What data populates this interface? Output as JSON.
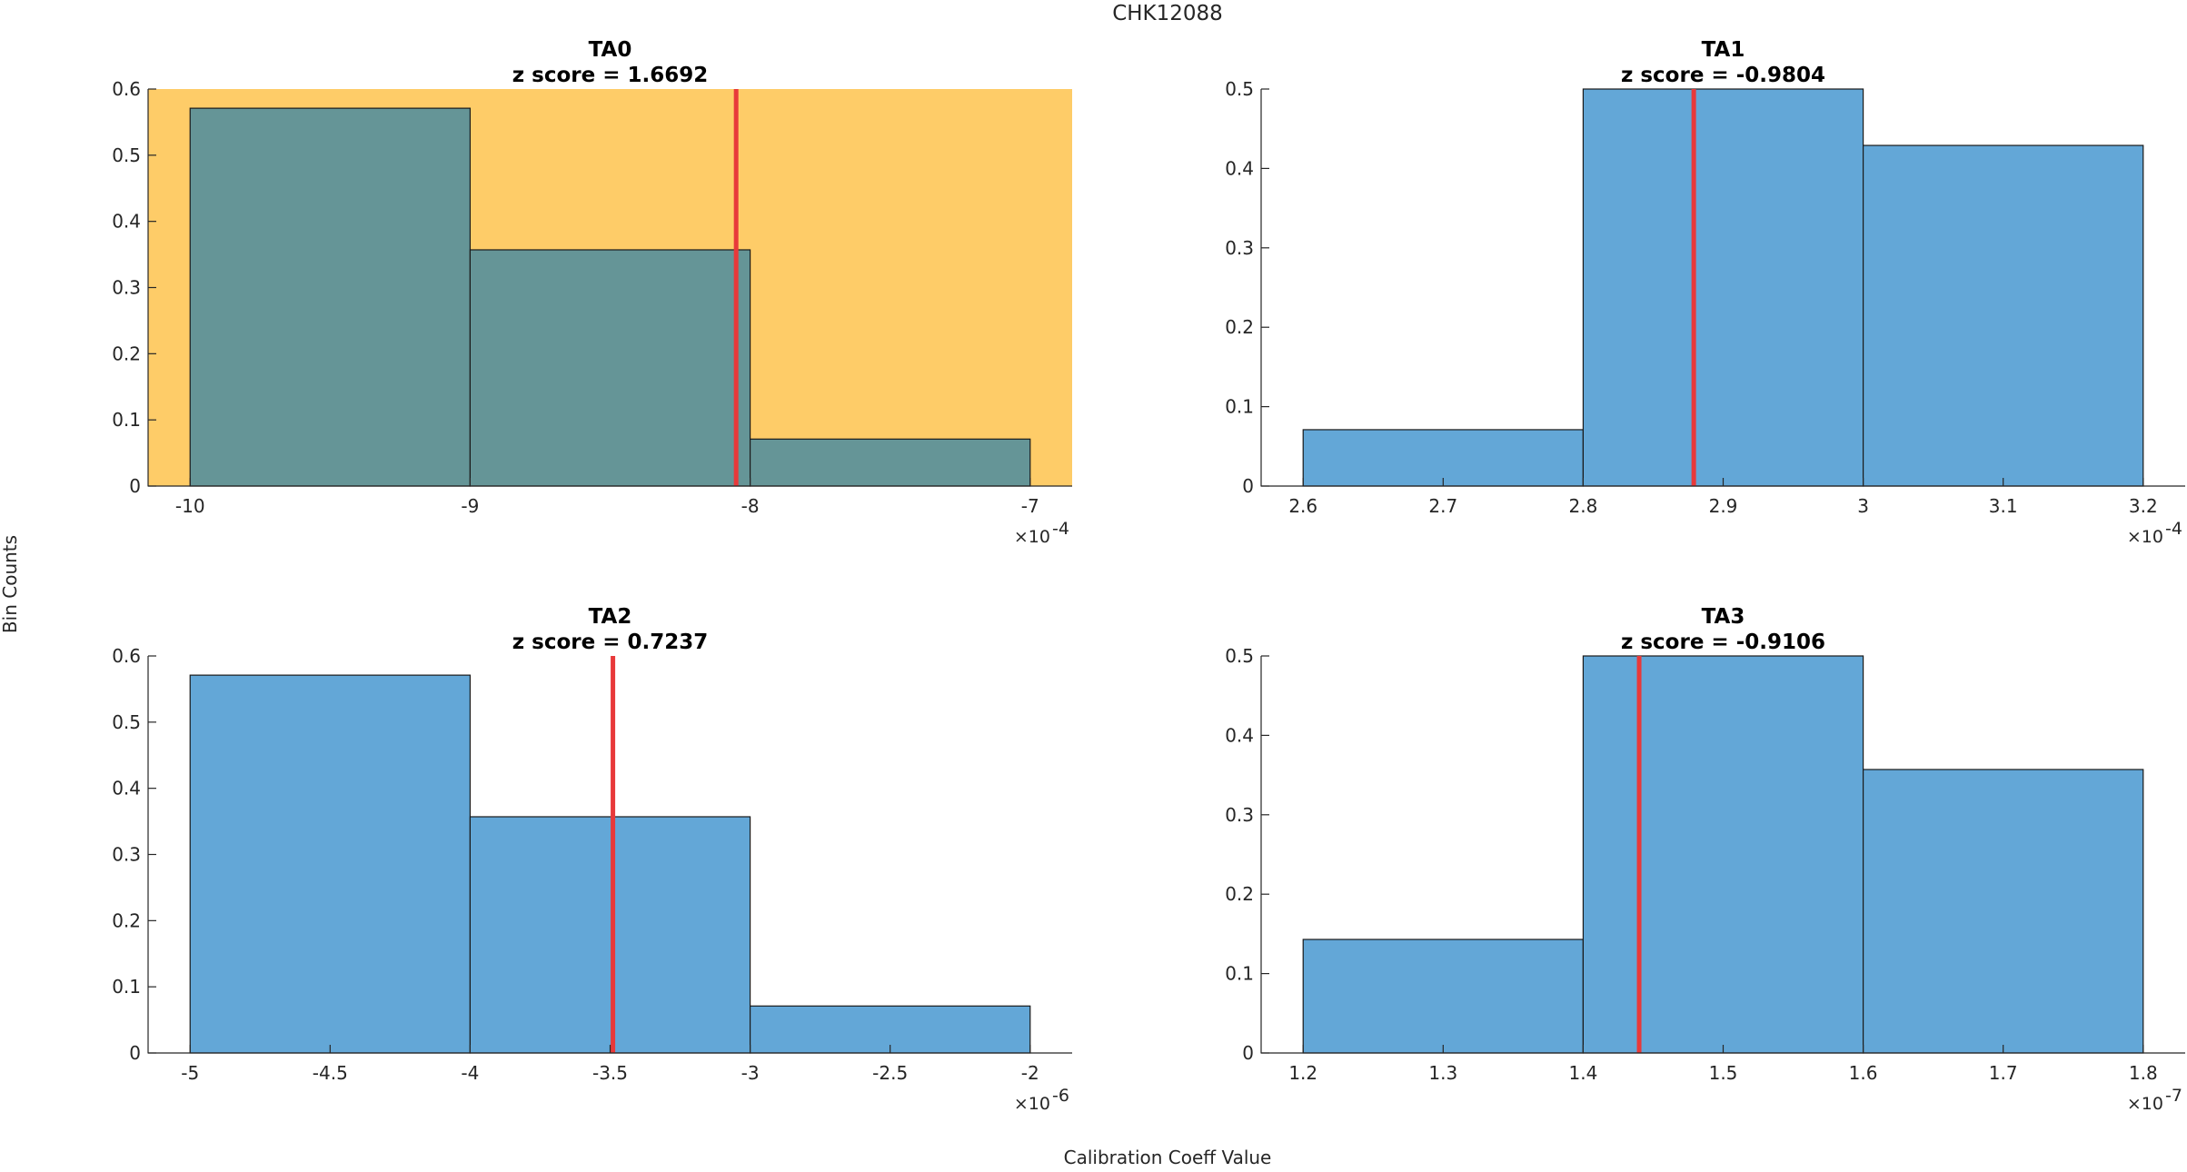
{
  "figure": {
    "title": "CHK12088",
    "xlabel": "Calibration Coeff Value",
    "ylabel": "Bin Counts"
  },
  "colors": {
    "bar_fill": "#63a7d7",
    "bar_fill_flagged": "#659597",
    "highlight_bg": "#fecc68",
    "marker": "#e8393a",
    "bar_edge": "#1a1a1a",
    "axis": "#262626"
  },
  "chart_data": [
    {
      "type": "bar",
      "name": "TA0",
      "title": "TA0",
      "subtitle": "z score = 1.6692",
      "highlighted": true,
      "bin_edges": [
        -10,
        -9,
        -8,
        -7
      ],
      "values": [
        0.571,
        0.357,
        0.071
      ],
      "marker_x": -8.05,
      "xlim": [
        -10.15,
        -6.85
      ],
      "ylim": [
        0,
        0.6
      ],
      "xticks": [
        -10,
        -9,
        -8,
        -7
      ],
      "xtick_labels": [
        "-10",
        "-9",
        "-8",
        "-7"
      ],
      "yticks": [
        0,
        0.1,
        0.2,
        0.3,
        0.4,
        0.5,
        0.6
      ],
      "ytick_labels": [
        "0",
        "0.1",
        "0.2",
        "0.3",
        "0.4",
        "0.5",
        "0.6"
      ],
      "x_exponent_base": "×10",
      "x_exponent": "-4"
    },
    {
      "type": "bar",
      "name": "TA1",
      "title": "TA1",
      "subtitle": "z score = -0.9804",
      "highlighted": false,
      "bin_edges": [
        2.6,
        2.8,
        3.0,
        3.2
      ],
      "values": [
        0.071,
        0.5,
        0.429
      ],
      "marker_x": 2.879,
      "xlim": [
        2.57,
        3.23
      ],
      "ylim": [
        0,
        0.5
      ],
      "xticks": [
        2.6,
        2.7,
        2.8,
        2.9,
        3.0,
        3.1,
        3.2
      ],
      "xtick_labels": [
        "2.6",
        "2.7",
        "2.8",
        "2.9",
        "3",
        "3.1",
        "3.2"
      ],
      "yticks": [
        0,
        0.1,
        0.2,
        0.3,
        0.4,
        0.5
      ],
      "ytick_labels": [
        "0",
        "0.1",
        "0.2",
        "0.3",
        "0.4",
        "0.5"
      ],
      "x_exponent_base": "×10",
      "x_exponent": "-4"
    },
    {
      "type": "bar",
      "name": "TA2",
      "title": "TA2",
      "subtitle": "z score = 0.7237",
      "highlighted": false,
      "bin_edges": [
        -5,
        -4,
        -3,
        -2
      ],
      "values": [
        0.571,
        0.357,
        0.071
      ],
      "marker_x": -3.49,
      "xlim": [
        -5.15,
        -1.85
      ],
      "ylim": [
        0,
        0.6
      ],
      "xticks": [
        -5,
        -4.5,
        -4,
        -3.5,
        -3,
        -2.5,
        -2
      ],
      "xtick_labels": [
        "-5",
        "-4.5",
        "-4",
        "-3.5",
        "-3",
        "-2.5",
        "-2"
      ],
      "yticks": [
        0,
        0.1,
        0.2,
        0.3,
        0.4,
        0.5,
        0.6
      ],
      "ytick_labels": [
        "0",
        "0.1",
        "0.2",
        "0.3",
        "0.4",
        "0.5",
        "0.6"
      ],
      "x_exponent_base": "×10",
      "x_exponent": "-6"
    },
    {
      "type": "bar",
      "name": "TA3",
      "title": "TA3",
      "subtitle": "z score = -0.9106",
      "highlighted": false,
      "bin_edges": [
        1.2,
        1.4,
        1.6,
        1.8
      ],
      "values": [
        0.143,
        0.5,
        0.357
      ],
      "marker_x": 1.44,
      "xlim": [
        1.17,
        1.83
      ],
      "ylim": [
        0,
        0.5
      ],
      "xticks": [
        1.2,
        1.3,
        1.4,
        1.5,
        1.6,
        1.7,
        1.8
      ],
      "xtick_labels": [
        "1.2",
        "1.3",
        "1.4",
        "1.5",
        "1.6",
        "1.7",
        "1.8"
      ],
      "yticks": [
        0,
        0.1,
        0.2,
        0.3,
        0.4,
        0.5
      ],
      "ytick_labels": [
        "0",
        "0.1",
        "0.2",
        "0.3",
        "0.4",
        "0.5"
      ],
      "x_exponent_base": "×10",
      "x_exponent": "-7"
    }
  ]
}
